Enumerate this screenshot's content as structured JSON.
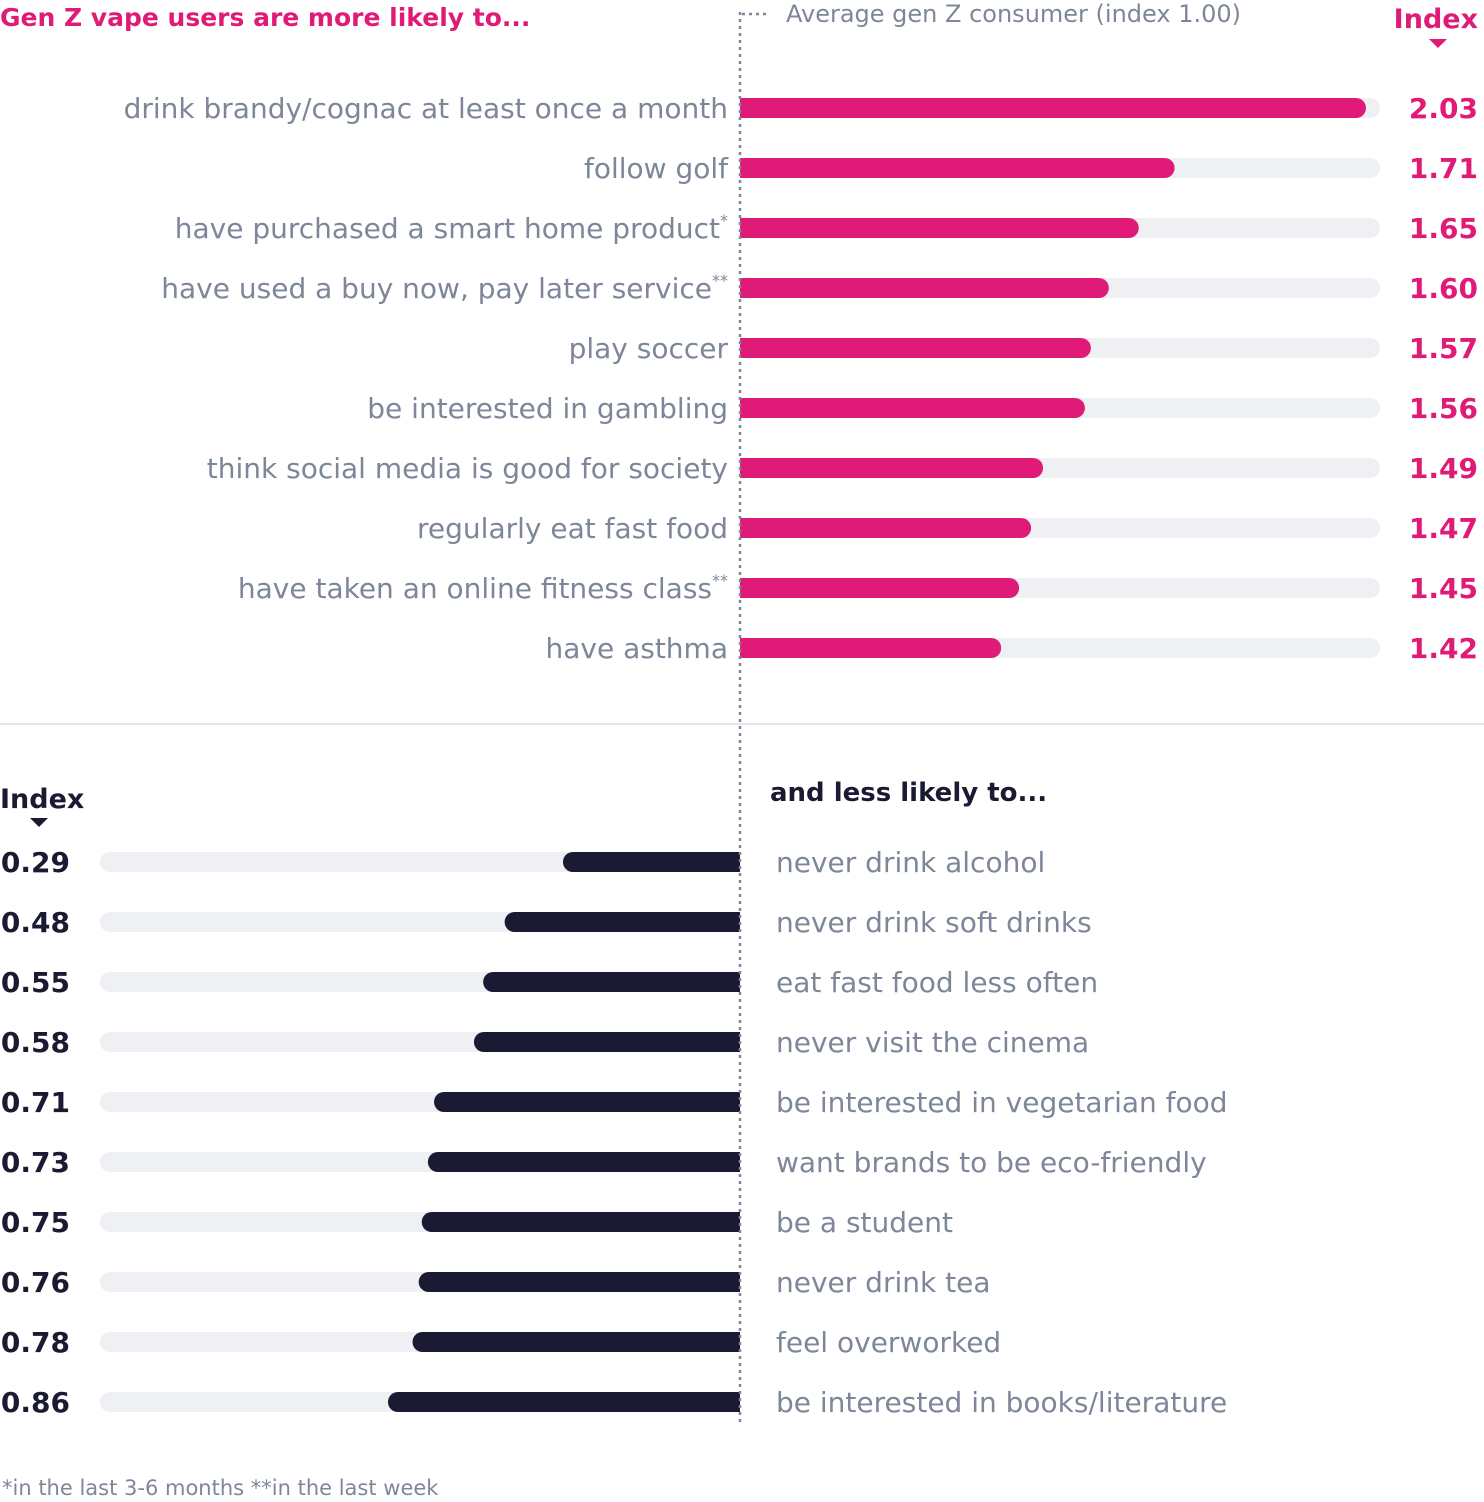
{
  "chart_data": [
    {
      "type": "bar",
      "orientation": "horizontal",
      "title": "Gen Z vape users are more likely to...",
      "value_header": "Index",
      "reference_label": "Average gen Z consumer (index 1.00)",
      "reference_value": 1.0,
      "color": "#e01b77",
      "track_color": "#eef0f4",
      "items": [
        {
          "label": "drink brandy/cognac at least once a month",
          "mark": "",
          "value": 2.03,
          "display": "2.03"
        },
        {
          "label": "follow golf",
          "mark": "",
          "value": 1.71,
          "display": "1.71"
        },
        {
          "label": "have purchased a smart home product",
          "mark": "*",
          "value": 1.65,
          "display": "1.65"
        },
        {
          "label": "have used a buy now, pay later service",
          "mark": "**",
          "value": 1.6,
          "display": "1.60"
        },
        {
          "label": "play soccer",
          "mark": "",
          "value": 1.57,
          "display": "1.57"
        },
        {
          "label": "be interested in gambling",
          "mark": "",
          "value": 1.56,
          "display": "1.56"
        },
        {
          "label": "think social media is good for society",
          "mark": "",
          "value": 1.49,
          "display": "1.49"
        },
        {
          "label": "regularly eat fast food",
          "mark": "",
          "value": 1.47,
          "display": "1.47"
        },
        {
          "label": "have taken an online fitness class",
          "mark": "**",
          "value": 1.45,
          "display": "1.45"
        },
        {
          "label": "have asthma",
          "mark": "",
          "value": 1.42,
          "display": "1.42"
        }
      ]
    },
    {
      "type": "bar",
      "orientation": "horizontal",
      "title": "and less likely to...",
      "value_header": "Index",
      "color": "#1b1a33",
      "track_color": "#eef0f4",
      "items": [
        {
          "label": "never drink alcohol",
          "value": 0.29,
          "display": "0.29"
        },
        {
          "label": "never drink soft drinks",
          "value": 0.48,
          "display": "0.48"
        },
        {
          "label": "eat fast food less often",
          "value": 0.55,
          "display": "0.55"
        },
        {
          "label": "never visit the cinema",
          "value": 0.58,
          "display": "0.58"
        },
        {
          "label": "be interested in vegetarian food",
          "value": 0.71,
          "display": "0.71"
        },
        {
          "label": "want brands to be eco-friendly",
          "value": 0.73,
          "display": "0.73"
        },
        {
          "label": "be a student",
          "value": 0.75,
          "display": "0.75"
        },
        {
          "label": "never drink tea",
          "value": 0.76,
          "display": "0.76"
        },
        {
          "label": "feel overworked",
          "value": 0.78,
          "display": "0.78"
        },
        {
          "label": "be interested in books/literature",
          "value": 0.86,
          "display": "0.86"
        }
      ]
    }
  ],
  "footnote": "*in the last 3-6 months **in the last week"
}
